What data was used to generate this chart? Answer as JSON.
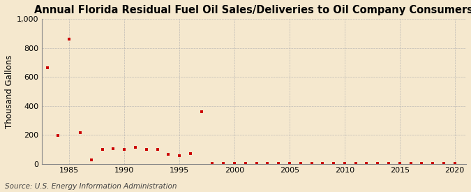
{
  "title": "Annual Florida Residual Fuel Oil Sales/Deliveries to Oil Company Consumers",
  "ylabel": "Thousand Gallons",
  "source": "Source: U.S. Energy Information Administration",
  "background_color": "#f5e8ce",
  "marker_color": "#cc0000",
  "grid_color": "#b0b0b0",
  "years": [
    1983,
    1984,
    1985,
    1986,
    1987,
    1988,
    1989,
    1990,
    1991,
    1992,
    1993,
    1994,
    1995,
    1996,
    1997,
    1998,
    1999,
    2000,
    2001,
    2002,
    2003,
    2004,
    2005,
    2006,
    2007,
    2008,
    2009,
    2010,
    2011,
    2012,
    2013,
    2014,
    2015,
    2016,
    2017,
    2018,
    2019,
    2020
  ],
  "values": [
    665,
    195,
    860,
    215,
    25,
    100,
    105,
    100,
    115,
    100,
    100,
    65,
    55,
    70,
    360,
    5,
    5,
    3,
    3,
    3,
    3,
    3,
    3,
    3,
    3,
    3,
    3,
    3,
    3,
    3,
    3,
    3,
    3,
    3,
    3,
    3,
    3,
    3
  ],
  "xlim": [
    1982.5,
    2021
  ],
  "ylim": [
    0,
    1000
  ],
  "yticks": [
    0,
    200,
    400,
    600,
    800,
    1000
  ],
  "xticks": [
    1985,
    1990,
    1995,
    2000,
    2005,
    2010,
    2015,
    2020
  ],
  "title_fontsize": 10.5,
  "label_fontsize": 8.5,
  "tick_fontsize": 8,
  "source_fontsize": 7.5
}
